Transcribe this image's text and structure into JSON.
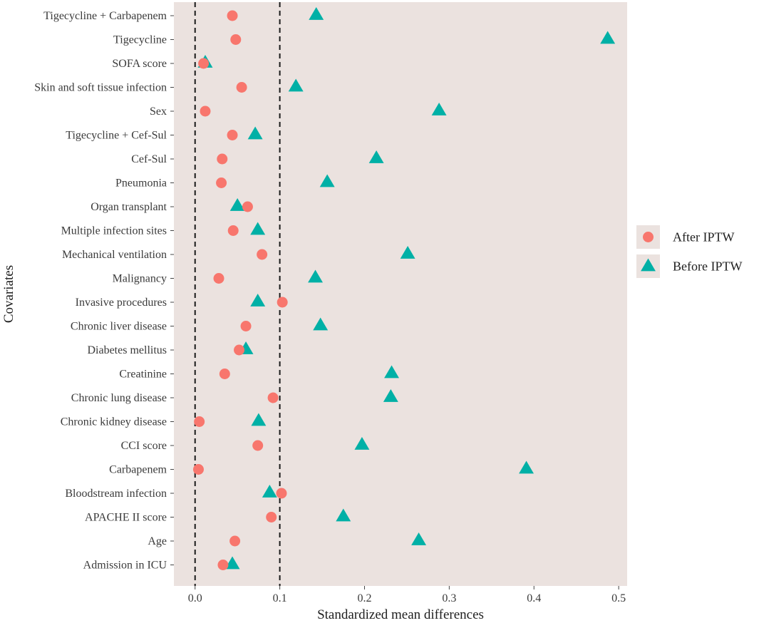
{
  "chart_data": {
    "type": "scatter",
    "title": "",
    "xlabel": "Standardized mean differences",
    "ylabel": "Covariates",
    "xlim": [
      -0.025,
      0.51
    ],
    "x_ticks": [
      0.0,
      0.1,
      0.2,
      0.3,
      0.4,
      0.5
    ],
    "x_tick_labels": [
      "0.0",
      "0.1",
      "0.2",
      "0.3",
      "0.4",
      "0.5"
    ],
    "reference_lines": [
      0,
      0.1
    ],
    "grid": false,
    "legend_position": "right",
    "categories": [
      "Tigecycline + Carbapenem",
      "Tigecycline",
      "SOFA score",
      "Skin and soft tissue infection",
      "Sex",
      "Tigecycline + Cef-Sul",
      "Cef-Sul",
      "Pneumonia",
      "Organ transplant",
      "Multiple infection sites",
      "Mechanical ventilation",
      "Malignancy",
      "Invasive procedures",
      "Chronic liver disease",
      "Diabetes mellitus",
      "Creatinine",
      "Chronic lung disease",
      "Chronic kidney disease",
      "CCI score",
      "Carbapenem",
      "Bloodstream infection",
      "APACHE II score",
      "Age",
      "Admission in ICU"
    ],
    "series": [
      {
        "name": "After IPTW",
        "marker": "circle",
        "color": "#f8766d",
        "values": [
          0.044,
          0.048,
          0.01,
          0.055,
          0.012,
          0.044,
          0.032,
          0.031,
          0.062,
          0.045,
          0.079,
          0.028,
          0.103,
          0.06,
          0.052,
          0.035,
          0.092,
          0.005,
          0.074,
          0.004,
          0.102,
          0.09,
          0.047,
          0.033
        ]
      },
      {
        "name": "Before IPTW",
        "marker": "triangle",
        "color": "#00b0a6",
        "values": [
          0.143,
          0.487,
          0.012,
          0.119,
          0.288,
          0.071,
          0.214,
          0.156,
          0.05,
          0.074,
          0.251,
          0.142,
          0.074,
          0.148,
          0.06,
          0.232,
          0.231,
          0.075,
          0.197,
          0.391,
          0.088,
          0.175,
          0.264,
          0.044
        ]
      }
    ]
  },
  "colors": {
    "panel_background": "#ebe2df",
    "reference_line": "#1a1a1a"
  }
}
